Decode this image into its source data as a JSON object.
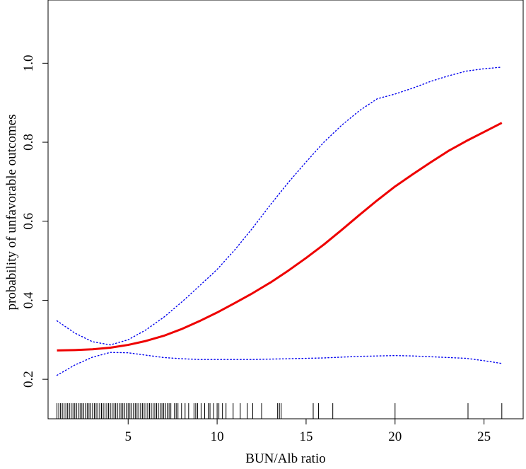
{
  "chart_data": {
    "type": "line",
    "title": "",
    "xlabel": "BUN/Alb ratio",
    "ylabel": "probability of unfavorable outcomes",
    "xlim": [
      0.5,
      27.2
    ],
    "ylim": [
      0.1,
      1.16
    ],
    "x_ticks": [
      5,
      10,
      15,
      20,
      25
    ],
    "y_ticks": [
      0.2,
      0.4,
      0.6,
      0.8,
      1.0
    ],
    "x_tick_labels": [
      "5",
      "10",
      "15",
      "20",
      "25"
    ],
    "y_tick_labels": [
      "0.2",
      "0.4",
      "0.6",
      "0.8",
      "1.0"
    ],
    "grid": false,
    "legend": "none",
    "series": [
      {
        "role": "estimate",
        "style": "solid",
        "color": "#ee0000",
        "x": [
          1,
          2,
          3,
          4,
          5,
          6,
          7,
          8,
          9,
          10,
          11,
          12,
          13,
          14,
          15,
          16,
          17,
          18,
          19,
          20,
          21,
          22,
          23,
          24,
          25,
          26
        ],
        "y": [
          0.273,
          0.274,
          0.276,
          0.28,
          0.287,
          0.297,
          0.31,
          0.327,
          0.347,
          0.369,
          0.393,
          0.418,
          0.445,
          0.475,
          0.507,
          0.541,
          0.578,
          0.616,
          0.653,
          0.688,
          0.719,
          0.749,
          0.778,
          0.803,
          0.826,
          0.849
        ]
      },
      {
        "role": "upper confidence limit",
        "style": "dotted",
        "color": "#0000ee",
        "x": [
          1,
          2,
          3,
          4,
          5,
          6,
          7,
          8,
          9,
          10,
          11,
          12,
          13,
          14,
          15,
          16,
          17,
          18,
          19,
          20,
          21,
          22,
          23,
          24,
          25,
          26
        ],
        "y": [
          0.348,
          0.317,
          0.295,
          0.287,
          0.3,
          0.325,
          0.357,
          0.395,
          0.436,
          0.478,
          0.528,
          0.583,
          0.642,
          0.698,
          0.75,
          0.8,
          0.843,
          0.88,
          0.91,
          0.922,
          0.937,
          0.954,
          0.968,
          0.98,
          0.986,
          0.99
        ]
      },
      {
        "role": "lower confidence limit",
        "style": "dotted",
        "color": "#0000ee",
        "x": [
          1,
          2,
          3,
          4,
          5,
          6,
          7,
          8,
          9,
          10,
          11,
          12,
          13,
          14,
          15,
          16,
          17,
          18,
          19,
          20,
          21,
          22,
          23,
          24,
          25,
          26
        ],
        "y": [
          0.21,
          0.236,
          0.256,
          0.268,
          0.267,
          0.261,
          0.255,
          0.252,
          0.25,
          0.25,
          0.25,
          0.25,
          0.251,
          0.252,
          0.253,
          0.254,
          0.256,
          0.258,
          0.259,
          0.26,
          0.259,
          0.257,
          0.255,
          0.253,
          0.247,
          0.24
        ]
      }
    ],
    "rug": {
      "color": "#000000",
      "x": [
        1.0,
        1.1,
        1.2,
        1.3,
        1.4,
        1.5,
        1.6,
        1.7,
        1.8,
        1.9,
        2.0,
        2.1,
        2.2,
        2.3,
        2.4,
        2.5,
        2.6,
        2.7,
        2.8,
        2.9,
        3.0,
        3.1,
        3.2,
        3.3,
        3.4,
        3.5,
        3.6,
        3.7,
        3.8,
        3.9,
        4.0,
        4.1,
        4.2,
        4.3,
        4.4,
        4.5,
        4.6,
        4.7,
        4.8,
        4.9,
        5.0,
        5.1,
        5.2,
        5.3,
        5.4,
        5.5,
        5.6,
        5.7,
        5.8,
        5.9,
        6.0,
        6.1,
        6.2,
        6.3,
        6.4,
        6.5,
        6.6,
        6.7,
        6.8,
        6.9,
        7.0,
        7.1,
        7.2,
        7.3,
        7.4,
        7.6,
        7.7,
        7.8,
        8.0,
        8.2,
        8.4,
        8.7,
        8.8,
        8.9,
        9.1,
        9.3,
        9.5,
        9.6,
        9.8,
        10.0,
        10.1,
        10.3,
        10.5,
        10.9,
        11.3,
        11.7,
        12.0,
        12.5,
        13.4,
        13.5,
        13.6,
        15.4,
        15.7,
        16.5,
        20.0,
        24.1,
        26.0
      ]
    }
  }
}
